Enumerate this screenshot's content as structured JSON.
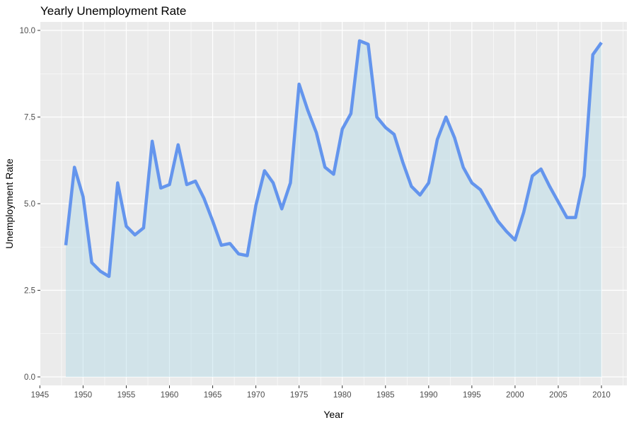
{
  "chart_data": {
    "type": "area",
    "title": "Yearly Unemployment Rate",
    "xlabel": "Year",
    "ylabel": "Unemployment Rate",
    "xlim": [
      1945,
      2012
    ],
    "ylim": [
      0,
      10
    ],
    "x_ticks": [
      1945,
      1950,
      1955,
      1960,
      1965,
      1970,
      1975,
      1980,
      1985,
      1990,
      1995,
      2000,
      2005,
      2010
    ],
    "y_ticks": [
      "0.0",
      "2.5",
      "5.0",
      "7.5",
      "10.0"
    ],
    "grid": true,
    "legend": "none",
    "colors": {
      "panel_background": "#EBEBEB",
      "gridline": "#FFFFFF",
      "line": "#6495ED",
      "fill": "#ADD8E6",
      "tick_text": "#4D4D4D"
    },
    "series": [
      {
        "x": [
          1948,
          1949,
          1950,
          1951,
          1952,
          1953,
          1954,
          1955,
          1956,
          1957,
          1958,
          1959,
          1960,
          1961,
          1962,
          1963,
          1964,
          1965,
          1966,
          1967,
          1968,
          1969,
          1970,
          1971,
          1972,
          1973,
          1974,
          1975,
          1976,
          1977,
          1978,
          1979,
          1980,
          1981,
          1982,
          1983,
          1984,
          1985,
          1986,
          1987,
          1988,
          1989,
          1990,
          1991,
          1992,
          1993,
          1994,
          1995,
          1996,
          1997,
          1998,
          1999,
          2000,
          2001,
          2002,
          2003,
          2004,
          2005,
          2006,
          2007,
          2008,
          2009,
          2010
        ],
        "y": [
          3.8,
          6.05,
          5.2,
          3.3,
          3.05,
          2.9,
          5.6,
          4.35,
          4.1,
          4.3,
          6.8,
          5.45,
          5.55,
          6.7,
          5.55,
          5.65,
          5.15,
          4.5,
          3.8,
          3.85,
          3.55,
          3.5,
          4.95,
          5.95,
          5.6,
          4.85,
          5.6,
          8.45,
          7.7,
          7.05,
          6.05,
          5.85,
          7.15,
          7.6,
          9.7,
          9.6,
          7.5,
          7.2,
          7.0,
          6.2,
          5.5,
          5.25,
          5.6,
          6.85,
          7.5,
          6.9,
          6.05,
          5.6,
          5.4,
          4.95,
          4.5,
          4.2,
          3.95,
          4.75,
          5.8,
          6.0,
          5.5,
          5.05,
          4.6,
          4.6,
          5.8,
          9.3,
          9.65
        ]
      }
    ]
  }
}
